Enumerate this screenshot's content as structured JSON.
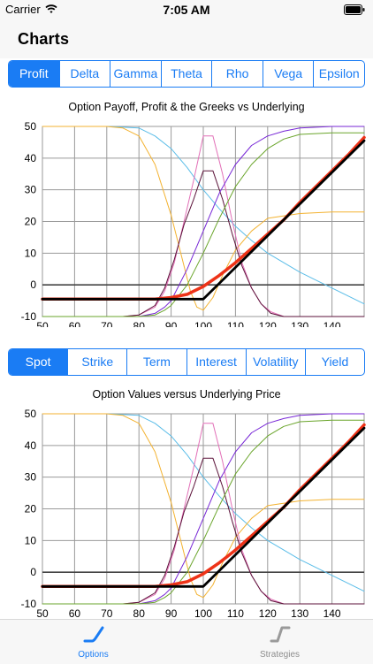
{
  "status": {
    "carrier": "Carrier",
    "time": "7:05 AM"
  },
  "nav": {
    "title": "Charts"
  },
  "top_tabs": [
    "Profit",
    "Delta",
    "Gamma",
    "Theta",
    "Rho",
    "Vega",
    "Epsilon"
  ],
  "top_tabs_selected": 0,
  "bottom_tabs": [
    "Spot",
    "Strike",
    "Term",
    "Interest",
    "Volatility",
    "Yield"
  ],
  "bottom_tabs_selected": 0,
  "colors": {
    "accent": "#1a7cf4",
    "profit": "#000000",
    "value": "#ee3318",
    "delta": "#7726d6",
    "gamma_a": "#e26fb7",
    "gamma_b": "#5b1239",
    "rho": "#6aa52b",
    "theta": "#f3b230",
    "vega": "#5bbde8"
  },
  "tabbar": {
    "items": [
      {
        "label": "Options",
        "icon": "options-curve-icon",
        "active": true
      },
      {
        "label": "Strategies",
        "icon": "strategies-curve-icon",
        "active": false
      }
    ]
  },
  "chart_data": [
    {
      "type": "line",
      "title": "Option Payoff, Profit & the Greeks vs Underlying",
      "xlabel": "",
      "ylabel": "",
      "xlim": [
        50,
        150
      ],
      "ylim": [
        -10,
        50
      ],
      "xticks": [
        50,
        60,
        70,
        80,
        90,
        100,
        110,
        120,
        130,
        140
      ],
      "yticks": [
        -10,
        0,
        10,
        20,
        30,
        40,
        50
      ],
      "grid": true,
      "series": [
        {
          "color": "#5bbde8",
          "x": [
            50,
            70,
            80,
            85,
            90,
            95,
            100,
            105,
            110,
            115,
            120,
            130,
            140,
            150
          ],
          "y": [
            50,
            50,
            49.5,
            47,
            43,
            37,
            30,
            24,
            18.5,
            14,
            10,
            4,
            -1,
            -6
          ]
        },
        {
          "color": "#f3b230",
          "x": [
            50,
            70,
            75,
            80,
            85,
            90,
            93,
            96,
            98,
            100,
            103,
            106,
            110,
            115,
            120,
            130,
            140,
            150
          ],
          "y": [
            50,
            50,
            49.5,
            47,
            38,
            22,
            10,
            -2,
            -7,
            -8,
            -4,
            3,
            11,
            17,
            21,
            22.5,
            23,
            23
          ]
        },
        {
          "color": "#e26fb7",
          "x": [
            50,
            75,
            80,
            85,
            88,
            91,
            94,
            97,
            100,
            103,
            106,
            109,
            112,
            115,
            118,
            121,
            125,
            150
          ],
          "y": [
            -10,
            -10,
            -9.5,
            -7,
            -2,
            7,
            20,
            33,
            47,
            47,
            35,
            20,
            7,
            -1,
            -6,
            -8.5,
            -10,
            -10
          ]
        },
        {
          "color": "#5b1239",
          "x": [
            50,
            75,
            80,
            85,
            88,
            91,
            94,
            97,
            100,
            103,
            106,
            109,
            112,
            115,
            118,
            121,
            125,
            150
          ],
          "y": [
            -10,
            -10,
            -9.5,
            -6.5,
            -1,
            8,
            19,
            27,
            36,
            36,
            27,
            16,
            6,
            -1,
            -6,
            -9,
            -10,
            -10
          ]
        },
        {
          "color": "#7726d6",
          "x": [
            50,
            80,
            85,
            88,
            90,
            95,
            100,
            105,
            110,
            115,
            120,
            125,
            130,
            140,
            150
          ],
          "y": [
            -10,
            -10,
            -9,
            -7,
            -5,
            5,
            17,
            29,
            38,
            44,
            47,
            48.5,
            49.5,
            50,
            50
          ]
        },
        {
          "color": "#6aa52b",
          "x": [
            50,
            80,
            85,
            88,
            90,
            95,
            100,
            105,
            110,
            115,
            120,
            125,
            130,
            140,
            150
          ],
          "y": [
            -10,
            -10,
            -9.5,
            -8,
            -6.5,
            0,
            10,
            21,
            31,
            38,
            43,
            46,
            47.5,
            48,
            48
          ]
        },
        {
          "color": "#ee3318",
          "x": [
            50,
            85,
            90,
            95,
            100,
            105,
            110,
            115,
            120,
            125,
            130,
            135,
            140,
            145,
            150
          ],
          "y": [
            -4.5,
            -4.5,
            -4,
            -3,
            -0.5,
            3,
            7,
            11.5,
            16,
            20.5,
            26,
            31,
            36,
            41,
            46.5
          ]
        },
        {
          "color": "#000000",
          "x": [
            50,
            100,
            150
          ],
          "y": [
            -4.5,
            -4.5,
            45.5
          ]
        }
      ]
    },
    {
      "type": "line",
      "title": "Option Values versus Underlying Price",
      "xlabel": "",
      "ylabel": "",
      "xlim": [
        50,
        150
      ],
      "ylim": [
        -10,
        50
      ],
      "xticks": [
        50,
        60,
        70,
        80,
        90,
        100,
        110,
        120,
        130,
        140
      ],
      "yticks": [
        -10,
        0,
        10,
        20,
        30,
        40,
        50
      ],
      "grid": true,
      "series": [
        {
          "color": "#5bbde8",
          "x": [
            50,
            70,
            80,
            85,
            90,
            95,
            100,
            105,
            110,
            115,
            120,
            130,
            140,
            150
          ],
          "y": [
            50,
            50,
            49.5,
            47,
            43,
            37,
            30,
            24,
            18.5,
            14,
            10,
            4,
            -1,
            -6
          ]
        },
        {
          "color": "#f3b230",
          "x": [
            50,
            70,
            75,
            80,
            85,
            90,
            93,
            96,
            98,
            100,
            103,
            106,
            110,
            115,
            120,
            130,
            140,
            150
          ],
          "y": [
            50,
            50,
            49.5,
            47,
            38,
            22,
            10,
            -2,
            -7,
            -8,
            -4,
            3,
            11,
            17,
            21,
            22.5,
            23,
            23
          ]
        },
        {
          "color": "#e26fb7",
          "x": [
            50,
            75,
            80,
            85,
            88,
            91,
            94,
            97,
            100,
            103,
            106,
            109,
            112,
            115,
            118,
            121,
            125,
            150
          ],
          "y": [
            -10,
            -10,
            -9.5,
            -7,
            -2,
            7,
            20,
            33,
            47,
            47,
            35,
            20,
            7,
            -1,
            -6,
            -8.5,
            -10,
            -10
          ]
        },
        {
          "color": "#5b1239",
          "x": [
            50,
            75,
            80,
            85,
            88,
            91,
            94,
            97,
            100,
            103,
            106,
            109,
            112,
            115,
            118,
            121,
            125,
            150
          ],
          "y": [
            -10,
            -10,
            -9.5,
            -6.5,
            -1,
            8,
            19,
            27,
            36,
            36,
            27,
            16,
            6,
            -1,
            -6,
            -9,
            -10,
            -10
          ]
        },
        {
          "color": "#7726d6",
          "x": [
            50,
            80,
            85,
            88,
            90,
            95,
            100,
            105,
            110,
            115,
            120,
            125,
            130,
            140,
            150
          ],
          "y": [
            -10,
            -10,
            -9,
            -7,
            -5,
            5,
            17,
            29,
            38,
            44,
            47,
            48.5,
            49.5,
            50,
            50
          ]
        },
        {
          "color": "#6aa52b",
          "x": [
            50,
            80,
            85,
            88,
            90,
            95,
            100,
            105,
            110,
            115,
            120,
            125,
            130,
            140,
            150
          ],
          "y": [
            -10,
            -10,
            -9.5,
            -8,
            -6.5,
            0,
            10,
            21,
            31,
            38,
            43,
            46,
            47.5,
            48,
            48
          ]
        },
        {
          "color": "#ee3318",
          "x": [
            50,
            85,
            90,
            95,
            100,
            105,
            110,
            115,
            120,
            125,
            130,
            135,
            140,
            145,
            150
          ],
          "y": [
            -4.5,
            -4.5,
            -4,
            -3,
            -0.5,
            3,
            7,
            11.5,
            16,
            20.5,
            26,
            31,
            36,
            41,
            46.5
          ]
        },
        {
          "color": "#000000",
          "x": [
            50,
            100,
            150
          ],
          "y": [
            -4.5,
            -4.5,
            45.5
          ]
        }
      ]
    }
  ]
}
